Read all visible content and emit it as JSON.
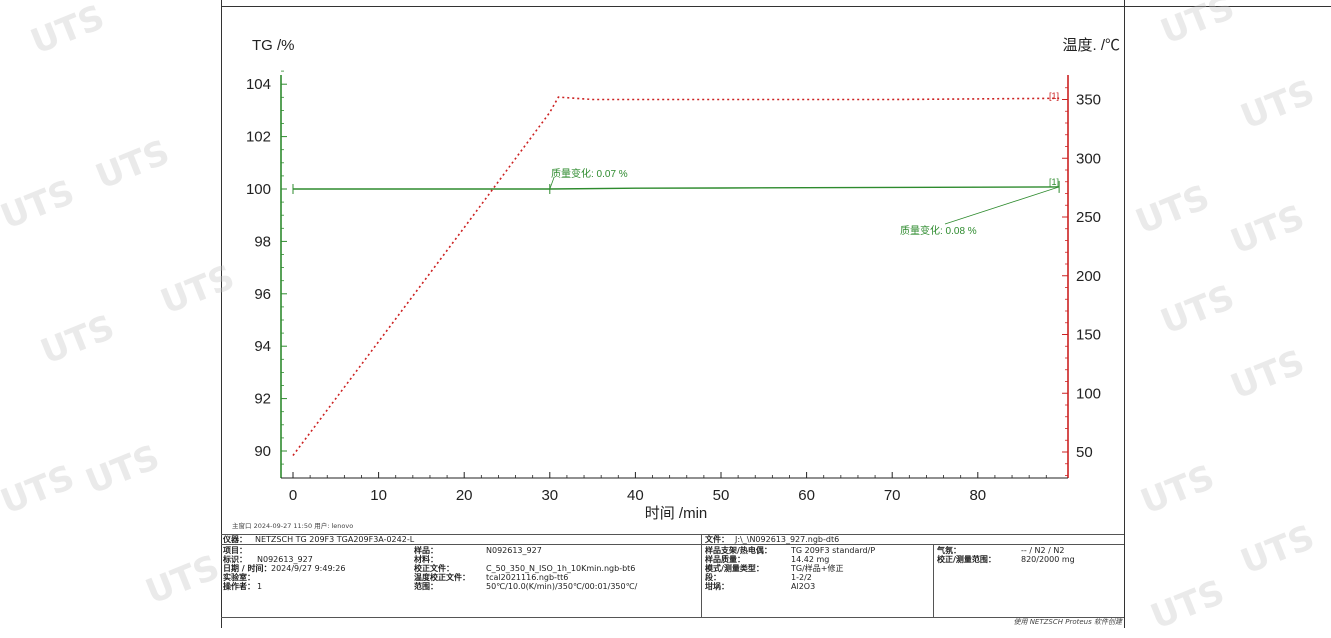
{
  "chart_data": {
    "type": "line",
    "y_left_label": "TG /%",
    "y_right_label": "温度. /℃",
    "x_label": "时间 /min",
    "xlim": [
      -1,
      90
    ],
    "ylim_left": [
      88.8,
      104.8
    ],
    "ylim_right": [
      25,
      370
    ],
    "x_ticks": [
      0,
      10,
      20,
      30,
      40,
      50,
      60,
      70,
      80
    ],
    "y_left_ticks": [
      90,
      92,
      94,
      96,
      98,
      100,
      102,
      104
    ],
    "y_right_ticks": [
      50,
      100,
      150,
      200,
      250,
      300,
      350
    ],
    "series": [
      {
        "axis": "left",
        "color": "#2e8b2e",
        "style": "solid",
        "x": [
          0,
          10,
          20,
          30,
          40,
          50,
          60,
          70,
          80,
          89.5
        ],
        "y": [
          100.0,
          100.0,
          100.0,
          100.0,
          100.03,
          100.04,
          100.05,
          100.06,
          100.07,
          100.08
        ]
      },
      {
        "axis": "right",
        "color": "#cc2222",
        "style": "dotted",
        "x": [
          0,
          10,
          20,
          30,
          31,
          35,
          50,
          70,
          89.5
        ],
        "y": [
          47,
          144,
          241,
          339,
          352,
          350,
          350,
          350,
          351
        ]
      }
    ],
    "annotations": [
      {
        "text": "质量变化: 0.07 %",
        "x": 30,
        "y": 100.0,
        "color": "#2e8b2e"
      },
      {
        "text": "质量变化: 0.08 %",
        "x": 89.5,
        "y": 100.08,
        "color": "#2e8b2e"
      },
      {
        "text": "[1]",
        "x": 89.5,
        "y_right": 351,
        "color": "#cc2222"
      },
      {
        "text": "[1]",
        "x": 89.5,
        "y": 100.1,
        "color": "#2e8b2e"
      }
    ]
  },
  "footer_note": "主窗口   2024-09-27 11:50   用户: lenovo",
  "watermark_text": "UTS",
  "info_panel": {
    "instrument_label": "仪器：",
    "instrument_value": "NETZSCH TG 209F3 TGA209F3A-0242-L",
    "file_label": "文件：",
    "file_value": "J:\\_\\N092613_927.ngb-dt6",
    "col1": [
      {
        "label": "项目：",
        "value": ""
      },
      {
        "label": "标识：",
        "value": "N092613_927"
      },
      {
        "label": "日期 / 时间：",
        "value": "2024/9/27 9:49:26"
      },
      {
        "label": "实验室：",
        "value": ""
      },
      {
        "label": "操作者：",
        "value": "1"
      }
    ],
    "col2": [
      {
        "label": "样品：",
        "value": "N092613_927"
      },
      {
        "label": "材料：",
        "value": ""
      },
      {
        "label": "校正文件：",
        "value": "C_50_350_N_ISO_1h_10Kmin.ngb-bt6"
      },
      {
        "label": "温度校正文件：",
        "value": "tcal2021116.ngb-tt6"
      },
      {
        "label": "范围：",
        "value": "50℃/10.0(K/min)/350℃/00:01/350℃/"
      }
    ],
    "col3": [
      {
        "label": "样品支架/热电偶：",
        "value": "TG 209F3 standard/P"
      },
      {
        "label": "样品质量：",
        "value": "14.42 mg"
      },
      {
        "label": "模式/测量类型：",
        "value": "TG/样品+修正"
      },
      {
        "label": "段：",
        "value": "1-2/2"
      },
      {
        "label": "坩埚：",
        "value": "Al2O3"
      }
    ],
    "col4": [
      {
        "label": "气氛：",
        "value": "-- / N2 / N2"
      },
      {
        "label": "校正/测量范围：",
        "value": "820/2000 mg"
      }
    ],
    "credit": "使用 NETZSCH Proteus 软件创建"
  }
}
